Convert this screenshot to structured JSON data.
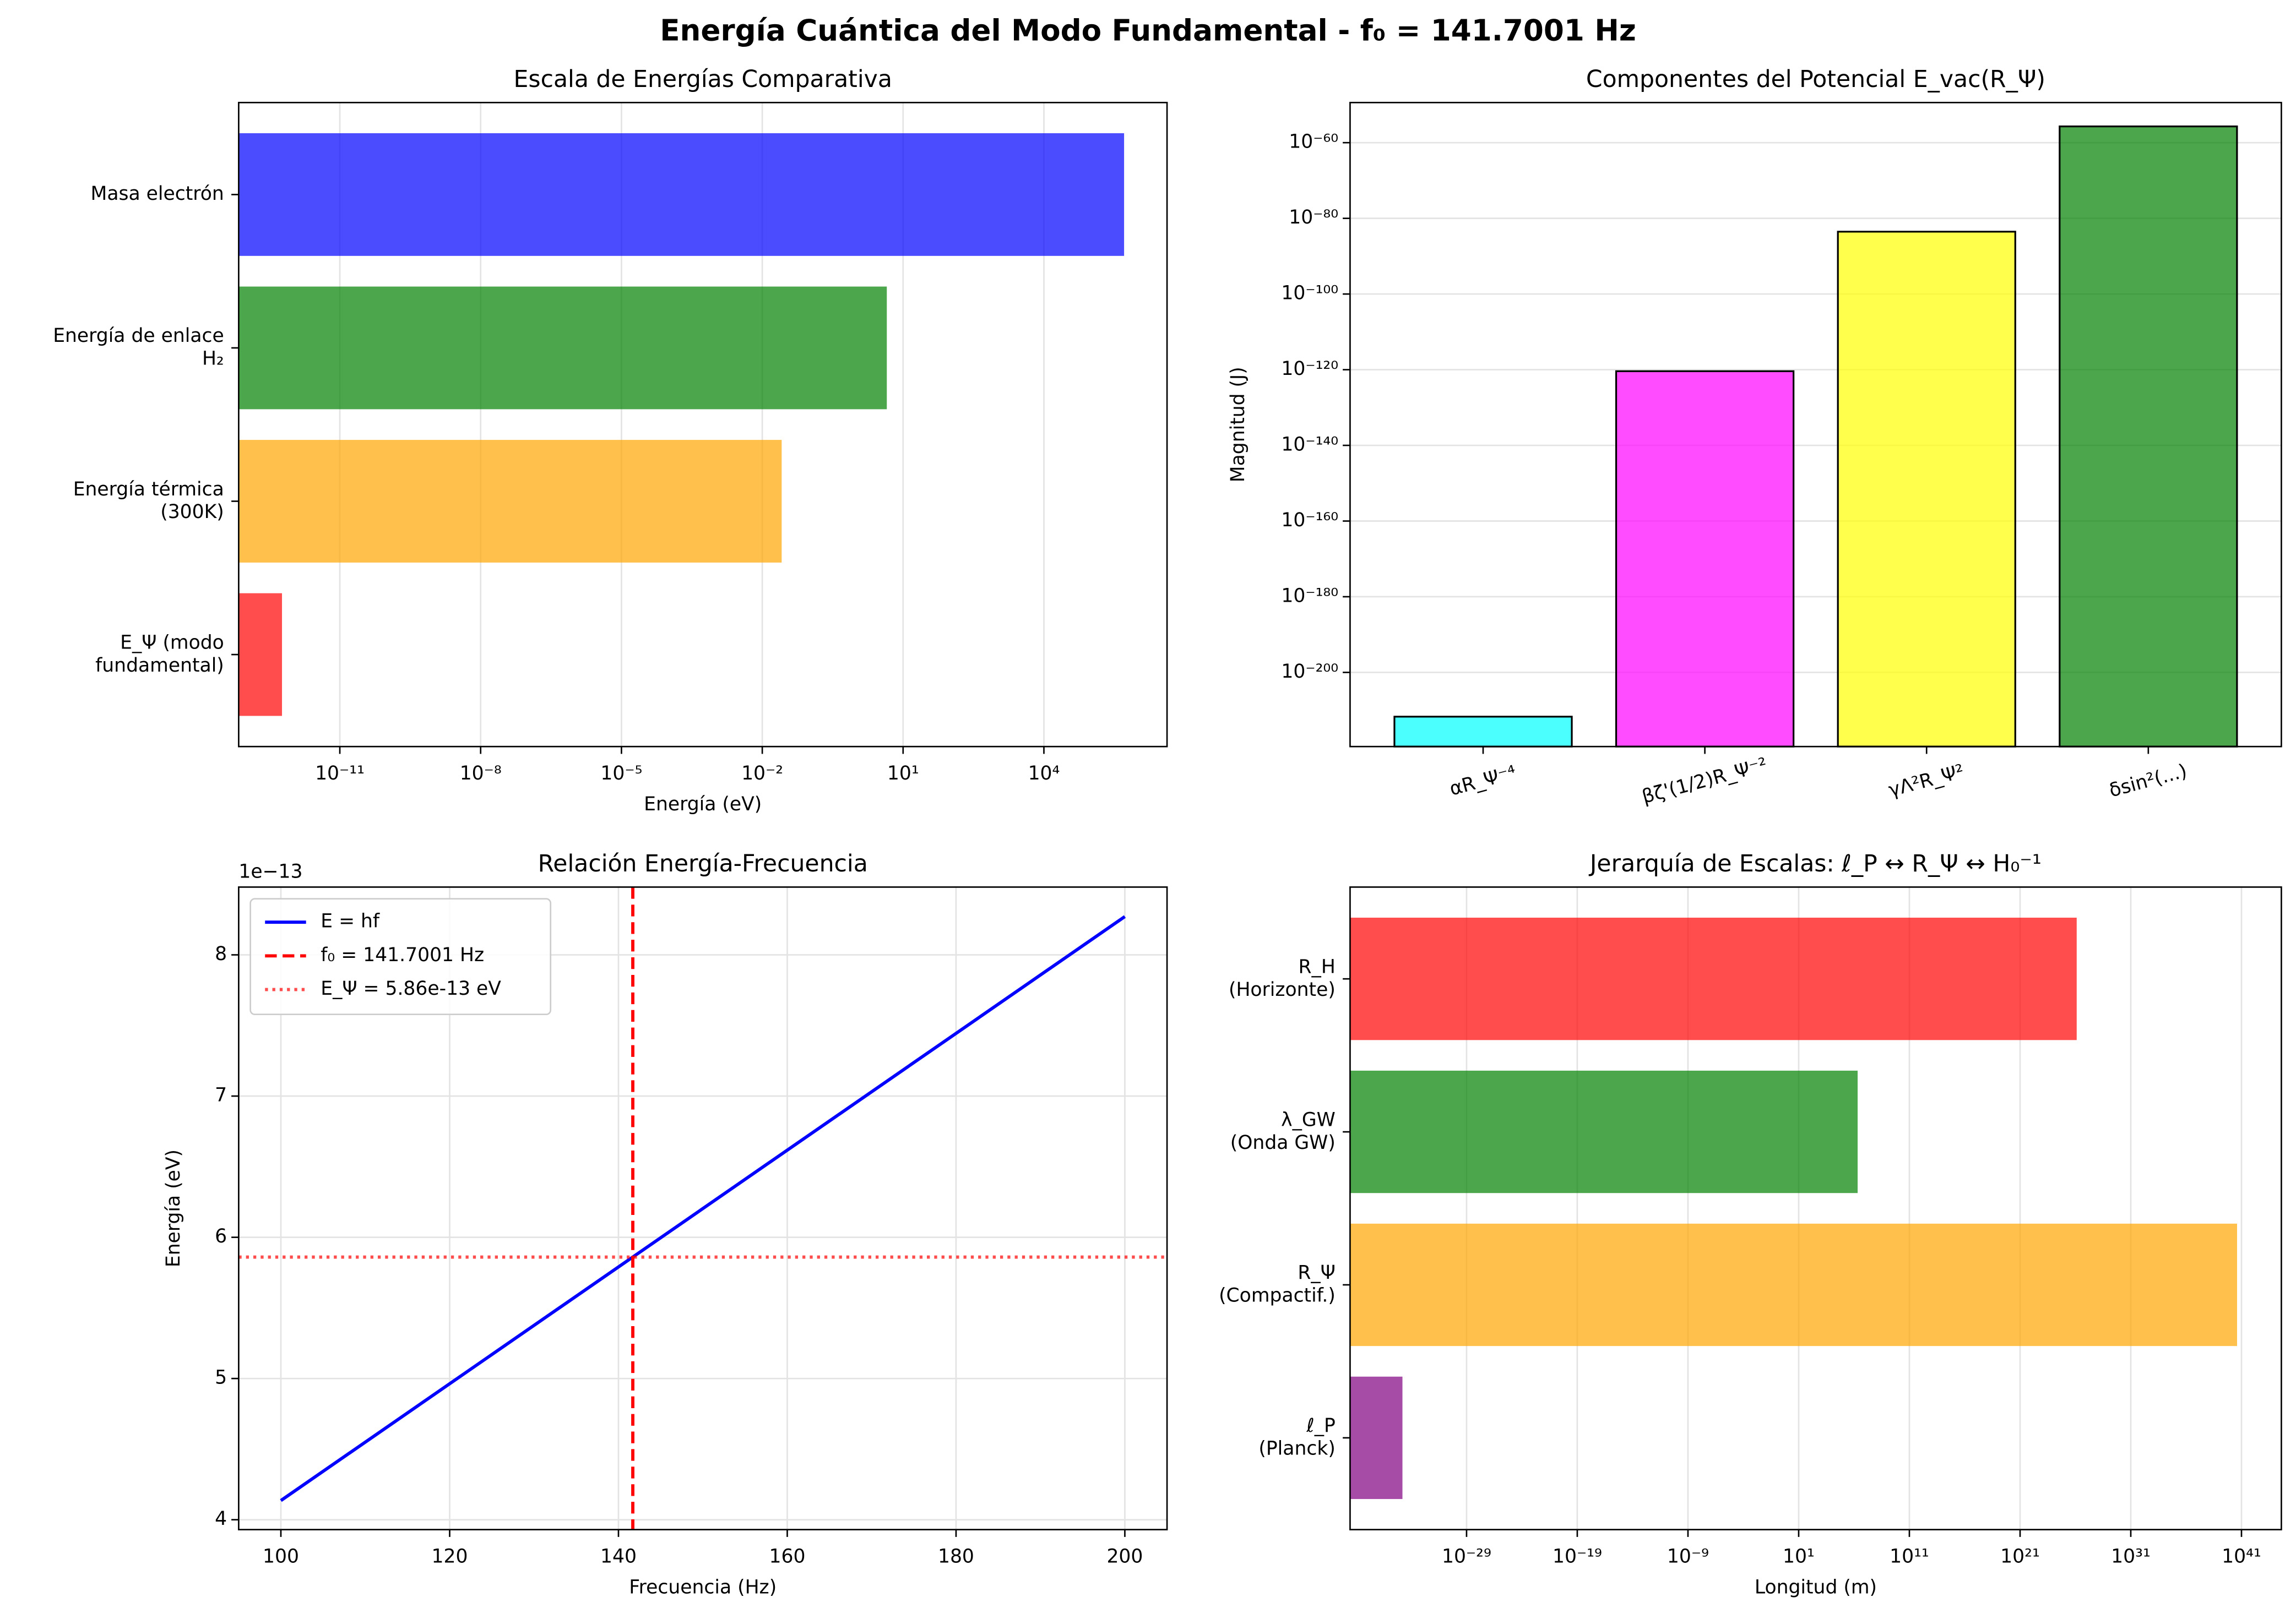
{
  "title": "Energía Cuántica del Modo Fundamental - f₀ = 141.7001 Hz",
  "chart_data": [
    {
      "type": "bar",
      "orientation": "horizontal",
      "title": "Escala de Energías Comparativa",
      "xlabel": "Energía (eV)",
      "categories": [
        "Masa electrón",
        "Energía de enlace\nH₂",
        "Energía térmica\n(300K)",
        "E_Ψ (modo\nfundamental)"
      ],
      "values": [
        511000,
        4.5,
        0.0259,
        5.86e-13
      ],
      "colors": [
        "#0000ff",
        "#008000",
        "#ffa500",
        "#ff0000"
      ],
      "alpha": 0.7,
      "xscale": "log",
      "xlim": [
        7e-14,
        4200000.0
      ],
      "xticks": [
        {
          "value": 1e-11,
          "label": "10⁻¹¹"
        },
        {
          "value": 1e-08,
          "label": "10⁻⁸"
        },
        {
          "value": 1e-05,
          "label": "10⁻⁵"
        },
        {
          "value": 0.01,
          "label": "10⁻²"
        },
        {
          "value": 10,
          "label": "10¹"
        },
        {
          "value": 10000,
          "label": "10⁴"
        }
      ],
      "grid": true
    },
    {
      "type": "bar",
      "orientation": "vertical",
      "title": "Componentes del Potencial E_vac(R_Ψ)",
      "ylabel": "Magnitud (J)",
      "categories": [
        "αR_Ψ⁻⁴",
        "βζ'(1/2)R_Ψ⁻²",
        "γΛ²R_Ψ²",
        "δsin²(...)"
      ],
      "values": [
        2e-212,
        4e-121,
        3e-84,
        2e-56
      ],
      "colors": [
        "#00ffff",
        "#ff00ff",
        "#ffff00",
        "#008000"
      ],
      "alpha": 0.7,
      "edgecolor": "#000000",
      "yscale": "log",
      "ylim": [
        2.5e-220,
        4e-50
      ],
      "yticks": [
        {
          "value": 1e-60,
          "label": "10⁻⁶⁰"
        },
        {
          "value": 1e-80,
          "label": "10⁻⁸⁰"
        },
        {
          "value": 1e-100,
          "label": "10⁻¹⁰⁰"
        },
        {
          "value": 1e-120,
          "label": "10⁻¹²⁰"
        },
        {
          "value": 1e-140,
          "label": "10⁻¹⁴⁰"
        },
        {
          "value": 1e-160,
          "label": "10⁻¹⁶⁰"
        },
        {
          "value": 1e-180,
          "label": "10⁻¹⁸⁰"
        },
        {
          "value": 1e-200,
          "label": "10⁻²⁰⁰"
        }
      ],
      "grid": true
    },
    {
      "type": "line",
      "title": "Relación Energía-Frecuencia",
      "xlabel": "Frecuencia (Hz)",
      "ylabel": "Energía (eV)",
      "y_offset_label": "1e−13",
      "x": [
        100,
        200
      ],
      "series": [
        {
          "name": "E = hf",
          "color": "#0000ff",
          "values": [
            4.136,
            8.271
          ]
        }
      ],
      "reference_lines": [
        {
          "name": "f₀ = 141.7001 Hz",
          "color": "#ff0000",
          "orientation": "vertical",
          "value": 141.7001,
          "style": "dashed",
          "alpha": 1
        },
        {
          "name": "E_Ψ = 5.86e-13 eV",
          "color": "#ff0000",
          "orientation": "horizontal",
          "value": 5.86,
          "style": "dotted",
          "alpha": 0.7
        }
      ],
      "xlim": [
        95,
        205
      ],
      "ylim": [
        3.93,
        8.48
      ],
      "xticks": [
        100,
        120,
        140,
        160,
        180,
        200
      ],
      "yticks": [
        4,
        5,
        6,
        7,
        8
      ],
      "grid": true,
      "legend": "upper left"
    },
    {
      "type": "bar",
      "orientation": "horizontal",
      "title": "Jerarquía de Escalas: ℓ_P ↔ R_Ψ ↔ H₀⁻¹",
      "xlabel": "Longitud (m)",
      "categories": [
        "R_H\n(Horizonte)",
        "λ_GW\n(Onda GW)",
        "R_Ψ\n(Compactif.)",
        "ℓ_P\n(Planck)"
      ],
      "values": [
        1.3e+26,
        2116000.0,
        4e+40,
        1.616e-35
      ],
      "colors": [
        "#ff0000",
        "#008000",
        "#ffa500",
        "#800080"
      ],
      "alpha": 0.7,
      "xscale": "log",
      "xlim": [
        3e-40,
        4e+44
      ],
      "xticks": [
        {
          "value": 1e-29,
          "label": "10⁻²⁹"
        },
        {
          "value": 1e-19,
          "label": "10⁻¹⁹"
        },
        {
          "value": 1e-09,
          "label": "10⁻⁹"
        },
        {
          "value": 10,
          "label": "10¹"
        },
        {
          "value": 100000000000.0,
          "label": "10¹¹"
        },
        {
          "value": 1e+21,
          "label": "10²¹"
        },
        {
          "value": 1e+31,
          "label": "10³¹"
        },
        {
          "value": 1e+41,
          "label": "10⁴¹"
        }
      ],
      "grid": true
    }
  ]
}
